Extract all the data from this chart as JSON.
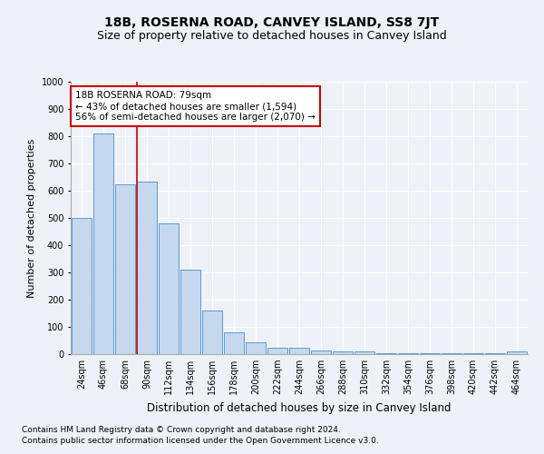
{
  "title": "18B, ROSERNA ROAD, CANVEY ISLAND, SS8 7JT",
  "subtitle": "Size of property relative to detached houses in Canvey Island",
  "xlabel": "Distribution of detached houses by size in Canvey Island",
  "ylabel": "Number of detached properties",
  "footnote1": "Contains HM Land Registry data © Crown copyright and database right 2024.",
  "footnote2": "Contains public sector information licensed under the Open Government Licence v3.0.",
  "categories": [
    "24sqm",
    "46sqm",
    "68sqm",
    "90sqm",
    "112sqm",
    "134sqm",
    "156sqm",
    "178sqm",
    "200sqm",
    "222sqm",
    "244sqm",
    "266sqm",
    "288sqm",
    "310sqm",
    "332sqm",
    "354sqm",
    "376sqm",
    "398sqm",
    "420sqm",
    "442sqm",
    "464sqm"
  ],
  "values": [
    500,
    810,
    625,
    635,
    480,
    310,
    160,
    80,
    43,
    22,
    22,
    15,
    10,
    10,
    5,
    5,
    2,
    2,
    2,
    2,
    10
  ],
  "bar_color": "#c5d8ed",
  "bar_edge_color": "#5b9bd5",
  "annotation_line1": "18B ROSERNA ROAD: 79sqm",
  "annotation_line2": "← 43% of detached houses are smaller (1,594)",
  "annotation_line3": "56% of semi-detached houses are larger (2,070) →",
  "annotation_box_color": "#ffffff",
  "annotation_box_edge_color": "#cc0000",
  "vline_x_index": 2.55,
  "vline_color": "#cc0000",
  "ylim": [
    0,
    1000
  ],
  "yticks": [
    0,
    100,
    200,
    300,
    400,
    500,
    600,
    700,
    800,
    900,
    1000
  ],
  "background_color": "#eef2f8",
  "axes_background_color": "#eef2f8",
  "grid_color": "#ffffff",
  "title_fontsize": 10,
  "subtitle_fontsize": 9,
  "xlabel_fontsize": 8.5,
  "ylabel_fontsize": 8,
  "tick_fontsize": 7,
  "annotation_fontsize": 7.5,
  "footnote_fontsize": 6.5
}
